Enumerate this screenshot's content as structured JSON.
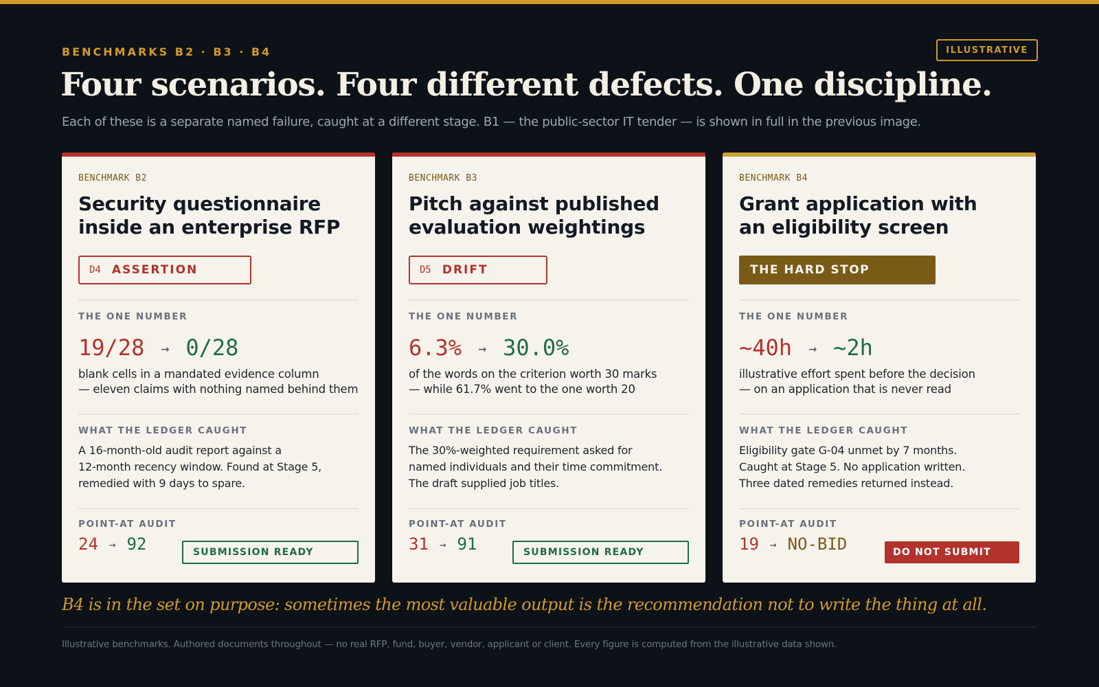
{
  "header": {
    "kicker": "BENCHMARKS B2 · B3 · B4",
    "badge": "ILLUSTRATIVE",
    "title": "Four scenarios. Four different defects. One discipline.",
    "subtitle": "Each of these is a separate named failure, caught at a different stage. B1 — the public-sector IT tender — is shown in full in the previous image."
  },
  "labels": {
    "one_number": "THE ONE NUMBER",
    "ledger": "WHAT THE LEDGER CAUGHT",
    "audit": "POINT-AT AUDIT"
  },
  "colors": {
    "accent": "#d19a2b",
    "red": "#b3322c",
    "green": "#1e6b49",
    "olive": "#7a5a17",
    "background": "#0d1118",
    "card": "#f6f3ec"
  },
  "cards": [
    {
      "bench": "BENCHMARK  B2",
      "title_l1": "Security questionnaire",
      "title_l2": "inside an enterprise RFP",
      "defect_code": "D4",
      "defect_name": "ASSERTION",
      "num_from": "19/28",
      "num_arrow": "→",
      "num_to": "0/28",
      "desc_l1": "blank cells in a mandated evidence column",
      "desc_l2": "— eleven claims with nothing named behind them",
      "caught_l1": "A 16-month-old audit report against a",
      "caught_l2": "12-month recency window. Found at Stage 5,",
      "caught_l3": "remedied with 9 days to spare.",
      "audit_from": "24",
      "audit_arrow": "→",
      "audit_to": "92",
      "status": "SUBMISSION READY"
    },
    {
      "bench": "BENCHMARK  B3",
      "title_l1": "Pitch against published",
      "title_l2": "evaluation weightings",
      "defect_code": "D5",
      "defect_name": "DRIFT",
      "num_from": "6.3%",
      "num_arrow": "→",
      "num_to": "30.0%",
      "desc_l1": "of the words on the criterion worth 30 marks",
      "desc_l2": "— while 61.7% went to the one worth 20",
      "caught_l1": "The 30%-weighted requirement asked for",
      "caught_l2": "named individuals and their time commitment.",
      "caught_l3": "The draft supplied job titles.",
      "audit_from": "31",
      "audit_arrow": "→",
      "audit_to": "91",
      "status": "SUBMISSION READY"
    },
    {
      "bench": "BENCHMARK  B4",
      "title_l1": "Grant application with",
      "title_l2": "an eligibility screen",
      "defect_name": "THE HARD STOP",
      "num_from": "~40h",
      "num_arrow": "→",
      "num_to": "~2h",
      "desc_l1": "illustrative effort spent before the decision",
      "desc_l2": "— on an application that is never read",
      "caught_l1": "Eligibility gate G-04 unmet by 7 months.",
      "caught_l2": "Caught at Stage 5. No application written.",
      "caught_l3": "Three dated remedies returned instead.",
      "audit_from": "19",
      "audit_arrow": "→",
      "audit_to": "NO-BID",
      "status": "DO NOT SUBMIT"
    }
  ],
  "closing": "B4 is in the set on purpose: sometimes the most valuable output is the recommendation not to write the thing at all.",
  "footnote": "Illustrative benchmarks. Authored documents throughout — no real RFP, fund, buyer, vendor, applicant or client. Every figure is computed from the illustrative data shown."
}
